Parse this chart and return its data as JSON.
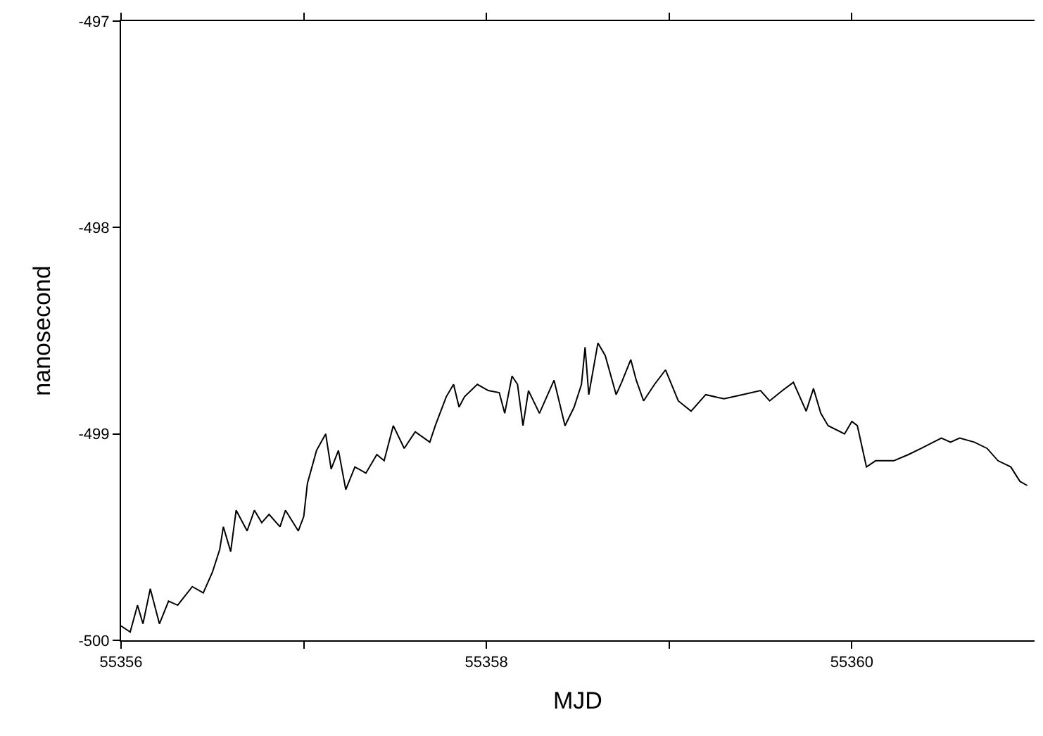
{
  "chart_data": {
    "type": "line",
    "xlabel": "MJD",
    "ylabel": "nanosecond",
    "xlim": [
      55356,
      55361
    ],
    "ylim": [
      -500,
      -497
    ],
    "xticks": [
      55356,
      {
        "value": 55357,
        "label": null
      },
      55358,
      {
        "value": 55359,
        "label": null
      },
      55360
    ],
    "yticks": [
      -500,
      -499,
      -498,
      -497
    ],
    "marker": "none",
    "line_style": "solid",
    "series": [
      {
        "color": "#000000",
        "x": [
          55356.0,
          55356.05,
          55356.09,
          55356.12,
          55356.16,
          55356.21,
          55356.26,
          55356.31,
          55356.39,
          55356.45,
          55356.5,
          55356.54,
          55356.56,
          55356.6,
          55356.63,
          55356.69,
          55356.73,
          55356.77,
          55356.81,
          55356.87,
          55356.9,
          55356.97,
          55357.0,
          55357.02,
          55357.07,
          55357.12,
          55357.15,
          55357.19,
          55357.23,
          55357.28,
          55357.34,
          55357.4,
          55357.44,
          55357.49,
          55357.55,
          55357.61,
          55357.69,
          55357.72,
          55357.78,
          55357.82,
          55357.85,
          55357.88,
          55357.95,
          55358.01,
          55358.07,
          55358.1,
          55358.14,
          55358.17,
          55358.2,
          55358.23,
          55358.29,
          55358.37,
          55358.43,
          55358.48,
          55358.52,
          55358.54,
          55358.56,
          55358.61,
          55358.65,
          55358.71,
          55358.74,
          55358.79,
          55358.82,
          55358.86,
          55358.92,
          55358.98,
          55359.05,
          55359.12,
          55359.2,
          55359.3,
          55359.4,
          55359.5,
          55359.55,
          55359.62,
          55359.68,
          55359.75,
          55359.79,
          55359.83,
          55359.87,
          55359.96,
          55360.0,
          55360.03,
          55360.08,
          55360.13,
          55360.23,
          55360.31,
          55360.38,
          55360.49,
          55360.54,
          55360.59,
          55360.67,
          55360.74,
          55360.8,
          55360.87,
          55360.92,
          55360.96
        ],
        "values": [
          -499.93,
          -499.96,
          -499.83,
          -499.92,
          -499.75,
          -499.92,
          -499.81,
          -499.83,
          -499.74,
          -499.77,
          -499.67,
          -499.56,
          -499.45,
          -499.57,
          -499.37,
          -499.47,
          -499.37,
          -499.43,
          -499.39,
          -499.45,
          -499.37,
          -499.47,
          -499.4,
          -499.24,
          -499.08,
          -499.0,
          -499.17,
          -499.08,
          -499.27,
          -499.16,
          -499.19,
          -499.1,
          -499.13,
          -498.96,
          -499.07,
          -498.99,
          -499.04,
          -498.96,
          -498.82,
          -498.76,
          -498.87,
          -498.82,
          -498.76,
          -498.79,
          -498.8,
          -498.9,
          -498.72,
          -498.76,
          -498.96,
          -498.79,
          -498.9,
          -498.74,
          -498.96,
          -498.87,
          -498.76,
          -498.58,
          -498.81,
          -498.56,
          -498.62,
          -498.81,
          -498.75,
          -498.64,
          -498.74,
          -498.84,
          -498.76,
          -498.69,
          -498.84,
          -498.89,
          -498.81,
          -498.83,
          -498.81,
          -498.79,
          -498.84,
          -498.79,
          -498.75,
          -498.89,
          -498.78,
          -498.9,
          -498.96,
          -499.0,
          -498.94,
          -498.96,
          -499.16,
          -499.13,
          -499.13,
          -499.1,
          -499.07,
          -499.02,
          -499.04,
          -499.02,
          -499.04,
          -499.07,
          -499.13,
          -499.16,
          -499.23,
          -499.25
        ]
      }
    ]
  }
}
